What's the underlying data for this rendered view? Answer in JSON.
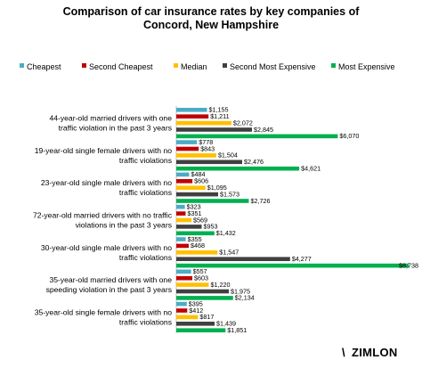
{
  "chart_data": {
    "type": "bar",
    "orientation": "horizontal",
    "title_lines": [
      "Comparison of car insurance rates by key companies of",
      "Concord, New Hampshire"
    ],
    "categories": [
      [
        "44-year-old married drivers with one",
        "traffic violation in the past 3 years"
      ],
      [
        "19-year-old single female drivers with no",
        "traffic violations"
      ],
      [
        "23-year-old single male drivers with no",
        "traffic violations"
      ],
      [
        "72-year-old married drivers with no traffic",
        "violations in the past 3 years"
      ],
      [
        "30-year-old single male drivers with no",
        "traffic violations"
      ],
      [
        "35-year-old married drivers with one",
        "speeding violation in the past 3 years"
      ],
      [
        "35-year-old single female drivers with no",
        "traffic violations"
      ]
    ],
    "series": [
      {
        "name": "Cheapest",
        "color": "#4bacc6",
        "values": [
          1155,
          778,
          484,
          323,
          355,
          557,
          395
        ],
        "labels": [
          "$1,155",
          "$778",
          "$484",
          "$323",
          "$355",
          "$557",
          "$395"
        ]
      },
      {
        "name": "Second Cheapest",
        "color": "#c00000",
        "values": [
          1211,
          843,
          606,
          351,
          468,
          603,
          412
        ],
        "labels": [
          "$1,211",
          "$843",
          "$606",
          "$351",
          "$468",
          "$603",
          "$412"
        ]
      },
      {
        "name": "Median",
        "color": "#ffc000",
        "values": [
          2072,
          1504,
          1095,
          569,
          1547,
          1220,
          817
        ],
        "labels": [
          "$2,072",
          "$1,504",
          "$1,095",
          "$569",
          "$1,547",
          "$1,220",
          "$817"
        ]
      },
      {
        "name": "Second Most Expensive",
        "color": "#404040",
        "values": [
          2845,
          2476,
          1573,
          953,
          4277,
          1975,
          1439
        ],
        "labels": [
          "$2,845",
          "$2,476",
          "$1,573",
          "$953",
          "$4,277",
          "$1,975",
          "$1,439"
        ]
      },
      {
        "name": "Most Expensive",
        "color": "#00b050",
        "values": [
          6070,
          4621,
          2726,
          1432,
          8738,
          2134,
          1851
        ],
        "labels": [
          "$6,070",
          "$4,621",
          "$2,726",
          "$1,432",
          "$8,738",
          "$2,134",
          "$1,851"
        ]
      }
    ],
    "xlim": [
      0,
      8800
    ],
    "grid": false,
    "legend_position": "top"
  },
  "logo": {
    "text": "ZIMLON",
    "mark": "\\"
  }
}
